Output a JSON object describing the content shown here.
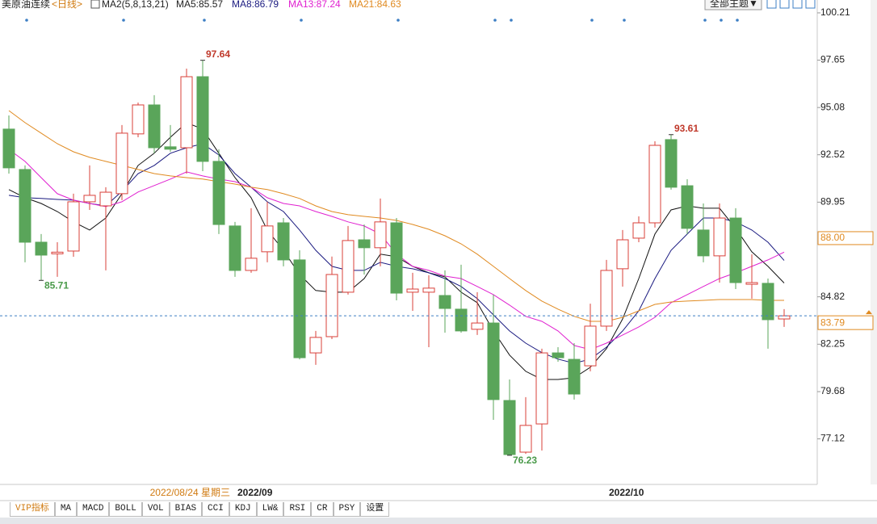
{
  "header": {
    "symbol": "美原油连续",
    "period": "<日线>",
    "indicator": "MA2(5,8,13,21)",
    "ma_labels": [
      "MA5:85.57",
      "MA8:86.79",
      "MA13:87.24",
      "MA21:84.63"
    ],
    "theme_button": "全部主题▼"
  },
  "chart_data": {
    "type": "candlestick",
    "ylim": [
      74.65,
      100.47
    ],
    "yticks": [
      77.12,
      79.68,
      82.25,
      84.82,
      89.95,
      92.52,
      95.08,
      97.65,
      100.21
    ],
    "marker_label": {
      "value": 88,
      "label": "88.00"
    },
    "categories": [
      null,
      null,
      null,
      null,
      null,
      null,
      null,
      null,
      null,
      null,
      null,
      null,
      null,
      null,
      "2022/09",
      null,
      null,
      null,
      null,
      null,
      null,
      null,
      null,
      null,
      null,
      null,
      null,
      null,
      null,
      null,
      null,
      null,
      null,
      null,
      null,
      null,
      null,
      "2022/10",
      null,
      null,
      null,
      null,
      null,
      null,
      null,
      null,
      null,
      null,
      null
    ],
    "cursor_label": "2022/08/24 星期三",
    "up_color": "#d9403a",
    "down_color": "#5aa55a",
    "open": [
      93.91,
      91.72,
      87.78,
      87.15,
      87.3,
      89.97,
      89.75,
      90.41,
      93.65,
      95.22,
      92.95,
      92.9,
      96.75,
      92.16,
      88.66,
      86.25,
      87.26,
      88.83,
      86.82,
      81.78,
      82.66,
      85.07,
      87.91,
      87.48,
      88.83,
      85.07,
      85.07,
      84.89,
      84.15,
      83.06,
      83.4,
      79.2,
      76.4,
      77.93,
      81.78,
      81.43,
      81.08,
      83.23,
      86.34,
      88.0,
      88.83,
      93.34,
      90.84,
      88.44,
      87.04,
      89.09,
      85.5,
      85.55,
      83.62
    ],
    "close": [
      91.81,
      87.78,
      87.08,
      87.24,
      89.97,
      90.32,
      90.49,
      93.69,
      95.22,
      92.9,
      92.82,
      96.75,
      92.16,
      88.74,
      86.25,
      86.91,
      88.66,
      86.82,
      81.52,
      82.62,
      86.03,
      87.87,
      87.48,
      88.88,
      85.02,
      85.24,
      85.29,
      84.19,
      82.97,
      83.4,
      79.25,
      76.27,
      77.85,
      81.78,
      81.52,
      79.55,
      83.23,
      86.25,
      87.91,
      88.83,
      93.03,
      90.76,
      88.53,
      87.04,
      89.09,
      85.59,
      85.59,
      83.58,
      83.79
    ],
    "high": [
      94.65,
      91.94,
      88.22,
      87.78,
      90.41,
      91.94,
      90.76,
      94.13,
      95.35,
      95.75,
      94.13,
      97.19,
      97.64,
      92.81,
      88.88,
      89.62,
      89.97,
      89.09,
      87.34,
      82.97,
      87.0,
      88.66,
      88.74,
      90.15,
      89.09,
      86.12,
      85.99,
      86.25,
      86.56,
      85.07,
      84.94,
      80.34,
      79.38,
      82.01,
      82.09,
      82.31,
      84.45,
      86.82,
      88.44,
      89.18,
      93.25,
      93.61,
      91.19,
      89.88,
      89.88,
      89.62,
      87.12,
      85.81,
      84.15
    ],
    "low": [
      91.5,
      86.69,
      85.71,
      85.9,
      86.99,
      89.53,
      86.25,
      90.06,
      93.47,
      92.6,
      92.68,
      91.5,
      91.63,
      88.22,
      85.9,
      86.12,
      86.69,
      86.47,
      81.43,
      81.13,
      82.53,
      84.94,
      86.03,
      86.47,
      84.63,
      84.06,
      82.09,
      82.88,
      82.88,
      82.75,
      78.15,
      76.23,
      76.31,
      76.49,
      81.3,
      79.25,
      80.78,
      82.97,
      85.37,
      87.78,
      88.57,
      90.63,
      88.22,
      86.69,
      85.59,
      85.24,
      84.72,
      82.01,
      83.19
    ],
    "ma_series": [
      {
        "name": "MA5",
        "color": "#111111",
        "values": [
          90.63,
          90.19,
          89.88,
          89.44,
          88.88,
          88.44,
          89.09,
          90.41,
          91.94,
          92.6,
          93.47,
          94.26,
          93.91,
          92.6,
          91.28,
          90.19,
          88.44,
          87.34,
          86.03,
          85.16,
          85.07,
          85.07,
          85.81,
          87.13,
          86.99,
          86.47,
          86.12,
          85.9,
          85.07,
          84.5,
          82.97,
          81.66,
          80.78,
          80.34,
          80.34,
          80.43,
          81.0,
          82.01,
          83.62,
          85.81,
          88.22,
          89.53,
          89.75,
          89.62,
          89.62,
          88.53,
          87.26,
          86.47,
          85.57
        ]
      },
      {
        "name": "MA8",
        "color": "#1a1a80",
        "values": [
          90.32,
          90.19,
          90.15,
          90.1,
          90.06,
          89.88,
          89.75,
          90.54,
          91.5,
          91.94,
          92.6,
          92.9,
          93.12,
          92.51,
          91.5,
          90.76,
          89.97,
          89.44,
          88.44,
          87.34,
          86.47,
          86.25,
          86.25,
          86.69,
          86.47,
          86.34,
          86.12,
          85.81,
          85.38,
          84.72,
          83.84,
          82.97,
          82.31,
          81.79,
          81.44,
          81.22,
          81.44,
          82.09,
          82.97,
          84.06,
          85.81,
          87.34,
          88.22,
          89.09,
          89.09,
          88.88,
          88.44,
          87.78,
          86.79
        ]
      },
      {
        "name": "MA13",
        "color": "#e020d0",
        "values": [
          92.81,
          92.16,
          91.28,
          90.41,
          90.06,
          89.88,
          89.71,
          89.97,
          90.5,
          90.85,
          91.2,
          91.59,
          91.37,
          91.2,
          91.06,
          90.76,
          90.19,
          89.88,
          89.75,
          89.44,
          89.18,
          88.88,
          88.66,
          88.22,
          87.13,
          86.47,
          86.25,
          85.94,
          85.81,
          85.38,
          84.94,
          84.37,
          83.76,
          83.49,
          82.97,
          82.18,
          81.96,
          82.31,
          82.75,
          83.19,
          83.71,
          84.5,
          84.94,
          85.38,
          85.81,
          86.12,
          86.47,
          86.82,
          87.24
        ]
      },
      {
        "name": "MA21",
        "color": "#e08a20",
        "values": [
          94.91,
          94.26,
          93.69,
          93.12,
          92.68,
          92.38,
          92.16,
          91.94,
          91.72,
          91.5,
          91.37,
          91.28,
          91.2,
          91.06,
          90.93,
          90.76,
          90.63,
          90.41,
          90.15,
          89.75,
          89.44,
          89.27,
          89.18,
          89.09,
          88.96,
          88.74,
          88.48,
          88.13,
          87.69,
          87.13,
          86.47,
          85.81,
          85.16,
          84.59,
          84.15,
          83.76,
          83.49,
          83.49,
          83.71,
          84.06,
          84.41,
          84.54,
          84.59,
          84.63,
          84.67,
          84.67,
          84.67,
          84.63,
          84.63
        ]
      }
    ]
  },
  "tabs": [
    "VIP指标",
    "MA",
    "MACD",
    "BOLL",
    "VOL",
    "BIAS",
    "CCI",
    "KDJ",
    "LW&",
    "RSI",
    "CR",
    "PSY",
    "设置"
  ]
}
